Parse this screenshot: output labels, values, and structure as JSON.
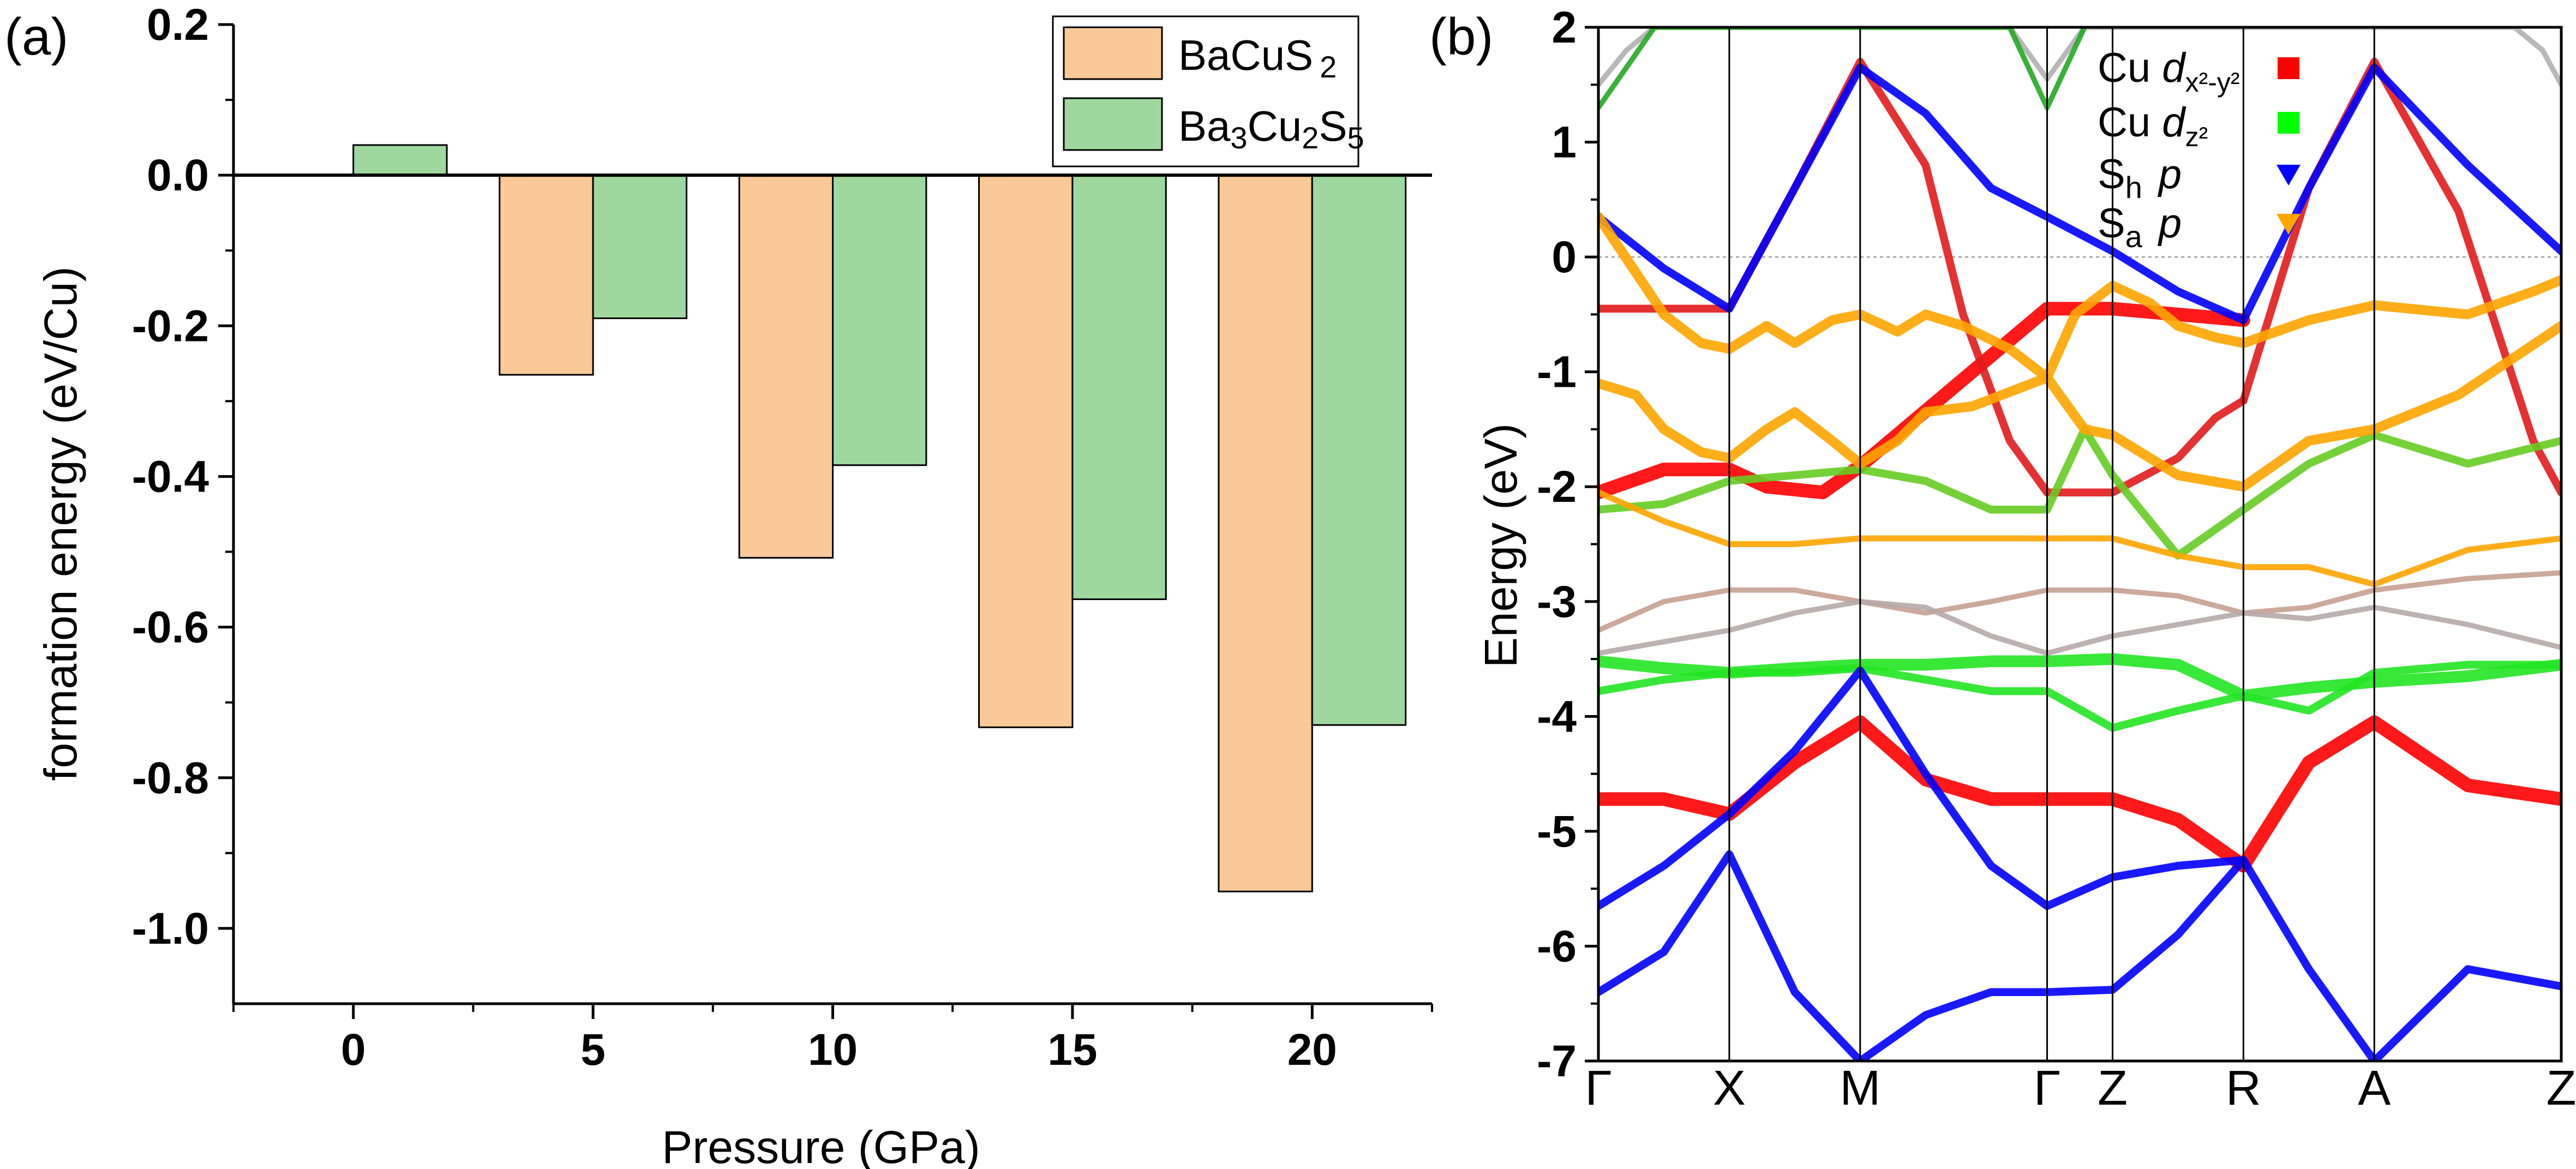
{
  "chart_data": [
    {
      "panel_label": "(a)",
      "type": "bar",
      "xlabel": "Pressure (GPa)",
      "ylabel": "formation energy (eV/Cu)",
      "xlim": [
        -2.5,
        22.5
      ],
      "ylim": [
        -1.1,
        0.2
      ],
      "categories": [
        "0",
        "5",
        "10",
        "15",
        "20"
      ],
      "x": [
        0,
        5,
        10,
        15,
        20
      ],
      "yticks": [
        "0.2",
        "0.0",
        "-0.2",
        "-0.4",
        "-0.6",
        "-0.8",
        "-1.0"
      ],
      "ytick_values": [
        0.2,
        0.0,
        -0.2,
        -0.4,
        -0.6,
        -0.8,
        -1.0
      ],
      "series": [
        {
          "name": "BaCuS2",
          "legend_main": "BaCuS",
          "legend_sub": "2",
          "color": "#fbc898",
          "values": [
            null,
            -0.265,
            -0.508,
            -0.733,
            -0.951
          ]
        },
        {
          "name": "Ba3Cu2S5",
          "color": "#9ed89e",
          "legend_parts": [
            "Ba",
            "3",
            "Cu",
            "2",
            "S",
            "5"
          ],
          "values": [
            0.04,
            -0.19,
            -0.385,
            -0.563,
            -0.73
          ]
        }
      ],
      "legend_position": "top-right"
    },
    {
      "panel_label": "(b)",
      "type": "line",
      "ylabel": "Energy (eV)",
      "ylim": [
        -7,
        2
      ],
      "yticks": [
        "2",
        "1",
        "0",
        "-1",
        "-2",
        "-3",
        "-4",
        "-5",
        "-6",
        "-7"
      ],
      "ytick_values": [
        2,
        1,
        0,
        -1,
        -2,
        -3,
        -4,
        -5,
        -6,
        -7
      ],
      "kpoints": [
        "Γ",
        "X",
        "M",
        "Γ",
        "Z",
        "R",
        "A",
        "Z"
      ],
      "kpoint_positions": [
        0,
        0.7,
        1.4,
        2.4,
        2.75,
        3.45,
        4.15,
        5.15
      ],
      "fermi_level": 0,
      "legend": [
        {
          "label": "Cu",
          "orbital": "d",
          "sub": "x²-y²",
          "marker": "square",
          "color": "#ff0000"
        },
        {
          "label": "Cu",
          "orbital": "d",
          "sub": "z²",
          "marker": "square",
          "color": "#00ff00"
        },
        {
          "label": "S",
          "sub": "h",
          "orbital": "p",
          "marker": "triangle",
          "color": "#0000ff"
        },
        {
          "label": "S",
          "sub": "a",
          "orbital": "p",
          "marker": "triangle",
          "color": "#ffa500"
        }
      ],
      "series": [
        {
          "name": "Cu dx2-y2 heavy low",
          "color": "#ff0000",
          "weight": 3,
          "x": [
            0,
            0.35,
            0.7,
            1.05,
            1.4,
            1.75,
            2.1,
            2.4,
            2.75,
            3.1,
            3.45,
            3.8,
            4.15,
            4.65,
            5.15
          ],
          "y": [
            -4.72,
            -4.72,
            -4.85,
            -4.4,
            -4.05,
            -4.55,
            -4.72,
            -4.72,
            -4.72,
            -4.9,
            -5.3,
            -4.4,
            -4.05,
            -4.6,
            -4.72
          ]
        },
        {
          "name": "Cu dx2-y2 heavy mid",
          "color": "#ff0000",
          "weight": 3,
          "x": [
            0,
            0.35,
            0.7,
            0.9,
            1.2,
            1.4,
            2.4,
            2.75,
            3.1,
            3.45
          ],
          "y": [
            -2.05,
            -1.85,
            -1.85,
            -2.0,
            -2.05,
            -1.82,
            -0.45,
            -0.45,
            -0.5,
            -0.55
          ]
        },
        {
          "name": "Cu dx2-y2 band A",
          "color": "#e21b1b",
          "weight": 1.5,
          "x": [
            0,
            0.35,
            0.7,
            1.05,
            1.4,
            1.75,
            1.95,
            2.2,
            2.4,
            2.75,
            3.1,
            3.3,
            3.45
          ],
          "y": [
            -0.45,
            -0.45,
            -0.45,
            0.6,
            1.7,
            0.8,
            -0.5,
            -1.6,
            -2.05,
            -2.05,
            -1.75,
            -1.4,
            -1.25
          ]
        },
        {
          "name": "Cu dx2-y2 band A right",
          "color": "#e21b1b",
          "weight": 1.5,
          "x": [
            3.45,
            3.8,
            4.15,
            4.6,
            5.0,
            5.15
          ],
          "y": [
            -1.25,
            0.6,
            1.7,
            0.4,
            -1.6,
            -2.05
          ]
        },
        {
          "name": "Cu dz2 flat",
          "color": "#22e622",
          "weight": 2.5,
          "x": [
            0,
            0.35,
            0.7,
            1.05,
            1.4,
            1.75,
            2.1,
            2.4,
            2.75,
            3.1,
            3.45,
            3.8,
            4.15,
            4.65,
            5.15
          ],
          "y": [
            -3.52,
            -3.58,
            -3.62,
            -3.58,
            -3.55,
            -3.55,
            -3.52,
            -3.52,
            -3.5,
            -3.55,
            -3.82,
            -3.75,
            -3.7,
            -3.65,
            -3.55
          ]
        },
        {
          "name": "Cu dz2 lower",
          "color": "#22e622",
          "weight": 1.5,
          "x": [
            0,
            0.35,
            0.7,
            1.05,
            1.4,
            1.75,
            2.1,
            2.4,
            2.75,
            3.1,
            3.45,
            3.8,
            4.15,
            4.65,
            5.15
          ],
          "y": [
            -3.78,
            -3.68,
            -3.62,
            -3.62,
            -3.58,
            -3.68,
            -3.78,
            -3.78,
            -4.1,
            -3.95,
            -3.82,
            -3.95,
            -3.62,
            -3.55,
            -3.55
          ]
        },
        {
          "name": "Cu dz2 upper",
          "color": "#66cc22",
          "weight": 1.5,
          "x": [
            0,
            0.35,
            0.7,
            1.05,
            1.4,
            1.75,
            2.1,
            2.4,
            2.6,
            2.75,
            3.1,
            3.45,
            3.8,
            4.15,
            4.65,
            5.15
          ],
          "y": [
            -2.2,
            -2.15,
            -1.95,
            -1.9,
            -1.85,
            -1.95,
            -2.2,
            -2.2,
            -1.5,
            -1.9,
            -2.6,
            -2.2,
            -1.8,
            -1.55,
            -1.8,
            -1.6
          ]
        },
        {
          "name": "S_h band up",
          "color": "#0000ff",
          "weight": 1.5,
          "x": [
            0,
            0.35,
            0.7,
            1.05,
            1.4,
            1.75,
            2.1,
            2.4,
            2.75,
            3.1,
            3.45,
            3.8,
            4.15,
            4.65,
            5.15
          ],
          "y": [
            0.35,
            -0.1,
            -0.45,
            0.6,
            1.65,
            1.25,
            0.6,
            0.35,
            0.05,
            -0.3,
            -0.55,
            0.6,
            1.65,
            0.8,
            0.05
          ]
        },
        {
          "name": "S_h band low",
          "color": "#0000ff",
          "weight": 1.5,
          "x": [
            0,
            0.35,
            0.7,
            1.05,
            1.4,
            1.75,
            2.1,
            2.4,
            2.75,
            3.1,
            3.45
          ],
          "y": [
            -5.65,
            -5.3,
            -4.85,
            -4.3,
            -3.6,
            -4.5,
            -5.3,
            -5.65,
            -5.4,
            -5.3,
            -5.25
          ]
        },
        {
          "name": "S_h band bottom",
          "color": "#0000ff",
          "weight": 1.5,
          "x": [
            0,
            0.35,
            0.7,
            1.05,
            1.4,
            1.75,
            2.1,
            2.4,
            2.75,
            3.1,
            3.45,
            3.8,
            4.15,
            4.65,
            5.15
          ],
          "y": [
            -6.4,
            -6.05,
            -5.2,
            -6.4,
            -7.0,
            -6.6,
            -6.4,
            -6.4,
            -6.38,
            -5.9,
            -5.25,
            -6.2,
            -7.0,
            -6.2,
            -6.35
          ]
        },
        {
          "name": "S_a band 1",
          "color": "#ffa500",
          "weight": 2,
          "x": [
            0,
            0.2,
            0.35,
            0.55,
            0.7,
            0.9,
            1.05,
            1.25,
            1.4,
            1.6,
            1.75,
            2.0,
            2.4,
            2.55,
            2.75,
            2.95,
            3.1,
            3.3,
            3.45,
            3.8,
            4.15,
            4.65,
            5.0,
            5.15
          ],
          "y": [
            -1.1,
            -1.2,
            -1.5,
            -1.7,
            -1.75,
            -1.5,
            -1.35,
            -1.6,
            -1.8,
            -1.6,
            -1.35,
            -1.3,
            -1.05,
            -0.5,
            -0.25,
            -0.4,
            -0.6,
            -0.7,
            -0.75,
            -0.55,
            -0.42,
            -0.5,
            -0.3,
            -0.2
          ]
        },
        {
          "name": "S_a band 2",
          "color": "#ffa500",
          "weight": 2,
          "x": [
            0,
            0.35,
            0.55,
            0.7,
            0.9,
            1.05,
            1.25,
            1.4,
            1.6,
            1.75,
            1.95,
            2.2,
            2.4,
            2.6,
            2.75,
            3.1,
            3.45,
            3.8,
            4.15,
            4.6,
            5.15
          ],
          "y": [
            0.35,
            -0.5,
            -0.75,
            -0.8,
            -0.6,
            -0.75,
            -0.55,
            -0.5,
            -0.65,
            -0.5,
            -0.6,
            -0.8,
            -1.05,
            -1.5,
            -1.55,
            -1.9,
            -2.0,
            -1.6,
            -1.5,
            -1.2,
            -0.6
          ]
        },
        {
          "name": "S_a band 3",
          "color": "#ffa500",
          "weight": 1,
          "x": [
            0,
            0.35,
            0.7,
            1.05,
            1.4,
            1.75,
            2.1,
            2.4,
            2.75,
            3.1,
            3.45,
            3.8,
            4.15,
            4.65,
            5.15
          ],
          "y": [
            -2.05,
            -2.3,
            -2.5,
            -2.5,
            -2.45,
            -2.45,
            -2.45,
            -2.45,
            -2.45,
            -2.6,
            -2.7,
            -2.7,
            -2.85,
            -2.55,
            -2.45
          ]
        },
        {
          "name": "weak band 1",
          "color": "#c8a090",
          "weight": 0.8,
          "x": [
            0,
            0.35,
            0.7,
            1.05,
            1.4,
            1.75,
            2.1,
            2.4,
            2.75,
            3.1,
            3.45,
            3.8,
            4.15,
            4.65,
            5.15
          ],
          "y": [
            -3.25,
            -3.0,
            -2.9,
            -2.9,
            -3.0,
            -3.1,
            -3.0,
            -2.9,
            -2.9,
            -2.95,
            -3.1,
            -3.05,
            -2.9,
            -2.8,
            -2.75
          ]
        },
        {
          "name": "weak band 2",
          "color": "#b7a8a8",
          "weight": 0.8,
          "x": [
            0,
            0.35,
            0.7,
            1.05,
            1.4,
            1.75,
            2.1,
            2.4,
            2.75,
            3.1,
            3.45,
            3.8,
            4.15,
            4.65,
            5.15
          ],
          "y": [
            -3.45,
            -3.35,
            -3.25,
            -3.1,
            -3.0,
            -3.05,
            -3.3,
            -3.45,
            -3.3,
            -3.2,
            -3.1,
            -3.15,
            -3.05,
            -3.2,
            -3.4
          ]
        },
        {
          "name": "upper band edge",
          "color": "#b0b0b0",
          "weight": 0.8,
          "x": [
            0,
            0.15,
            0.3,
            2.2,
            2.4,
            2.6,
            4.9,
            5.05,
            5.15
          ],
          "y": [
            1.5,
            1.8,
            2.0,
            2.0,
            1.55,
            2.0,
            2.0,
            1.8,
            1.5
          ]
        },
        {
          "name": "upper green band",
          "color": "#22aa22",
          "weight": 0.8,
          "x": [
            0,
            0.15,
            0.3,
            2.2,
            2.4,
            2.6
          ],
          "y": [
            1.3,
            1.65,
            2.0,
            2.0,
            1.3,
            2.0
          ]
        }
      ]
    }
  ]
}
